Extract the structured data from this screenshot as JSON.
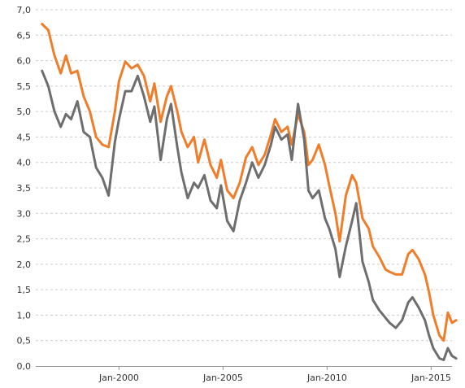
{
  "chart_data": {
    "type": "line",
    "title": "",
    "xlabel": "",
    "ylabel": "",
    "ylim": [
      0,
      7
    ],
    "xlim": [
      1996.0,
      2016.0
    ],
    "grid": true,
    "legend": "none",
    "y_ticks": [
      "0,0",
      "0,5",
      "1,0",
      "1,5",
      "2,0",
      "2,5",
      "3,0",
      "3,5",
      "4,0",
      "4,5",
      "5,0",
      "5,5",
      "6,0",
      "6,5",
      "7,0"
    ],
    "x_ticks": [
      {
        "value": 2000,
        "label": "Jan-2000"
      },
      {
        "value": 2005,
        "label": "Jan-2005"
      },
      {
        "value": 2010,
        "label": "Jan-2010"
      },
      {
        "value": 2015,
        "label": "Jan-2015"
      }
    ],
    "series": [
      {
        "color": "#f07d2a",
        "points": [
          [
            1996.3,
            6.72
          ],
          [
            1996.6,
            6.6
          ],
          [
            1996.9,
            6.1
          ],
          [
            1997.2,
            5.75
          ],
          [
            1997.45,
            6.1
          ],
          [
            1997.7,
            5.75
          ],
          [
            1998.0,
            5.8
          ],
          [
            1998.3,
            5.3
          ],
          [
            1998.6,
            5.0
          ],
          [
            1998.9,
            4.5
          ],
          [
            1999.2,
            4.35
          ],
          [
            1999.5,
            4.3
          ],
          [
            1999.8,
            5.0
          ],
          [
            2000.0,
            5.6
          ],
          [
            2000.3,
            5.98
          ],
          [
            2000.6,
            5.85
          ],
          [
            2000.9,
            5.92
          ],
          [
            2001.2,
            5.7
          ],
          [
            2001.5,
            5.2
          ],
          [
            2001.7,
            5.55
          ],
          [
            2002.0,
            4.8
          ],
          [
            2002.3,
            5.3
          ],
          [
            2002.5,
            5.5
          ],
          [
            2002.8,
            5.0
          ],
          [
            2003.0,
            4.6
          ],
          [
            2003.3,
            4.3
          ],
          [
            2003.6,
            4.5
          ],
          [
            2003.8,
            4.0
          ],
          [
            2004.1,
            4.45
          ],
          [
            2004.4,
            3.95
          ],
          [
            2004.7,
            3.7
          ],
          [
            2004.9,
            4.05
          ],
          [
            2005.2,
            3.45
          ],
          [
            2005.5,
            3.3
          ],
          [
            2005.8,
            3.6
          ],
          [
            2006.1,
            4.1
          ],
          [
            2006.4,
            4.3
          ],
          [
            2006.7,
            3.95
          ],
          [
            2007.0,
            4.15
          ],
          [
            2007.3,
            4.55
          ],
          [
            2007.5,
            4.85
          ],
          [
            2007.8,
            4.6
          ],
          [
            2008.1,
            4.7
          ],
          [
            2008.3,
            4.35
          ],
          [
            2008.6,
            4.95
          ],
          [
            2008.9,
            4.6
          ],
          [
            2009.1,
            3.95
          ],
          [
            2009.3,
            4.05
          ],
          [
            2009.6,
            4.35
          ],
          [
            2009.9,
            3.95
          ],
          [
            2010.1,
            3.55
          ],
          [
            2010.4,
            3.0
          ],
          [
            2010.6,
            2.45
          ],
          [
            2010.9,
            3.35
          ],
          [
            2011.2,
            3.75
          ],
          [
            2011.4,
            3.6
          ],
          [
            2011.7,
            2.9
          ],
          [
            2012.0,
            2.7
          ],
          [
            2012.2,
            2.35
          ],
          [
            2012.5,
            2.15
          ],
          [
            2012.8,
            1.9
          ],
          [
            2013.0,
            1.85
          ],
          [
            2013.3,
            1.8
          ],
          [
            2013.6,
            1.8
          ],
          [
            2013.9,
            2.2
          ],
          [
            2014.1,
            2.28
          ],
          [
            2014.4,
            2.1
          ],
          [
            2014.7,
            1.8
          ],
          [
            2014.9,
            1.45
          ],
          [
            2015.1,
            1.0
          ],
          [
            2015.4,
            0.6
          ],
          [
            2015.6,
            0.5
          ],
          [
            2015.8,
            1.05
          ],
          [
            2016.0,
            0.85
          ],
          [
            2016.2,
            0.9
          ]
        ]
      },
      {
        "color": "#6e6e6e",
        "points": [
          [
            1996.3,
            5.8
          ],
          [
            1996.6,
            5.5
          ],
          [
            1996.9,
            5.0
          ],
          [
            1997.2,
            4.7
          ],
          [
            1997.45,
            4.95
          ],
          [
            1997.7,
            4.85
          ],
          [
            1998.0,
            5.2
          ],
          [
            1998.3,
            4.6
          ],
          [
            1998.6,
            4.5
          ],
          [
            1998.9,
            3.9
          ],
          [
            1999.2,
            3.7
          ],
          [
            1999.5,
            3.35
          ],
          [
            1999.8,
            4.4
          ],
          [
            2000.0,
            4.85
          ],
          [
            2000.3,
            5.4
          ],
          [
            2000.6,
            5.4
          ],
          [
            2000.9,
            5.7
          ],
          [
            2001.2,
            5.3
          ],
          [
            2001.5,
            4.8
          ],
          [
            2001.7,
            5.1
          ],
          [
            2002.0,
            4.05
          ],
          [
            2002.3,
            4.85
          ],
          [
            2002.5,
            5.15
          ],
          [
            2002.8,
            4.3
          ],
          [
            2003.0,
            3.8
          ],
          [
            2003.3,
            3.3
          ],
          [
            2003.6,
            3.6
          ],
          [
            2003.8,
            3.5
          ],
          [
            2004.1,
            3.75
          ],
          [
            2004.4,
            3.25
          ],
          [
            2004.7,
            3.1
          ],
          [
            2004.9,
            3.55
          ],
          [
            2005.2,
            2.85
          ],
          [
            2005.5,
            2.65
          ],
          [
            2005.8,
            3.25
          ],
          [
            2006.1,
            3.6
          ],
          [
            2006.4,
            4.0
          ],
          [
            2006.7,
            3.7
          ],
          [
            2007.0,
            3.95
          ],
          [
            2007.3,
            4.35
          ],
          [
            2007.5,
            4.7
          ],
          [
            2007.8,
            4.45
          ],
          [
            2008.1,
            4.55
          ],
          [
            2008.3,
            4.05
          ],
          [
            2008.6,
            5.15
          ],
          [
            2008.9,
            4.45
          ],
          [
            2009.1,
            3.45
          ],
          [
            2009.3,
            3.3
          ],
          [
            2009.6,
            3.45
          ],
          [
            2009.9,
            2.9
          ],
          [
            2010.1,
            2.7
          ],
          [
            2010.4,
            2.3
          ],
          [
            2010.6,
            1.75
          ],
          [
            2010.9,
            2.35
          ],
          [
            2011.2,
            2.85
          ],
          [
            2011.4,
            3.2
          ],
          [
            2011.7,
            2.05
          ],
          [
            2012.0,
            1.65
          ],
          [
            2012.2,
            1.3
          ],
          [
            2012.5,
            1.1
          ],
          [
            2012.8,
            0.95
          ],
          [
            2013.0,
            0.85
          ],
          [
            2013.3,
            0.75
          ],
          [
            2013.6,
            0.9
          ],
          [
            2013.9,
            1.25
          ],
          [
            2014.1,
            1.35
          ],
          [
            2014.4,
            1.15
          ],
          [
            2014.7,
            0.9
          ],
          [
            2014.9,
            0.6
          ],
          [
            2015.1,
            0.35
          ],
          [
            2015.4,
            0.15
          ],
          [
            2015.6,
            0.12
          ],
          [
            2015.8,
            0.35
          ],
          [
            2016.0,
            0.2
          ],
          [
            2016.2,
            0.15
          ]
        ]
      }
    ]
  }
}
